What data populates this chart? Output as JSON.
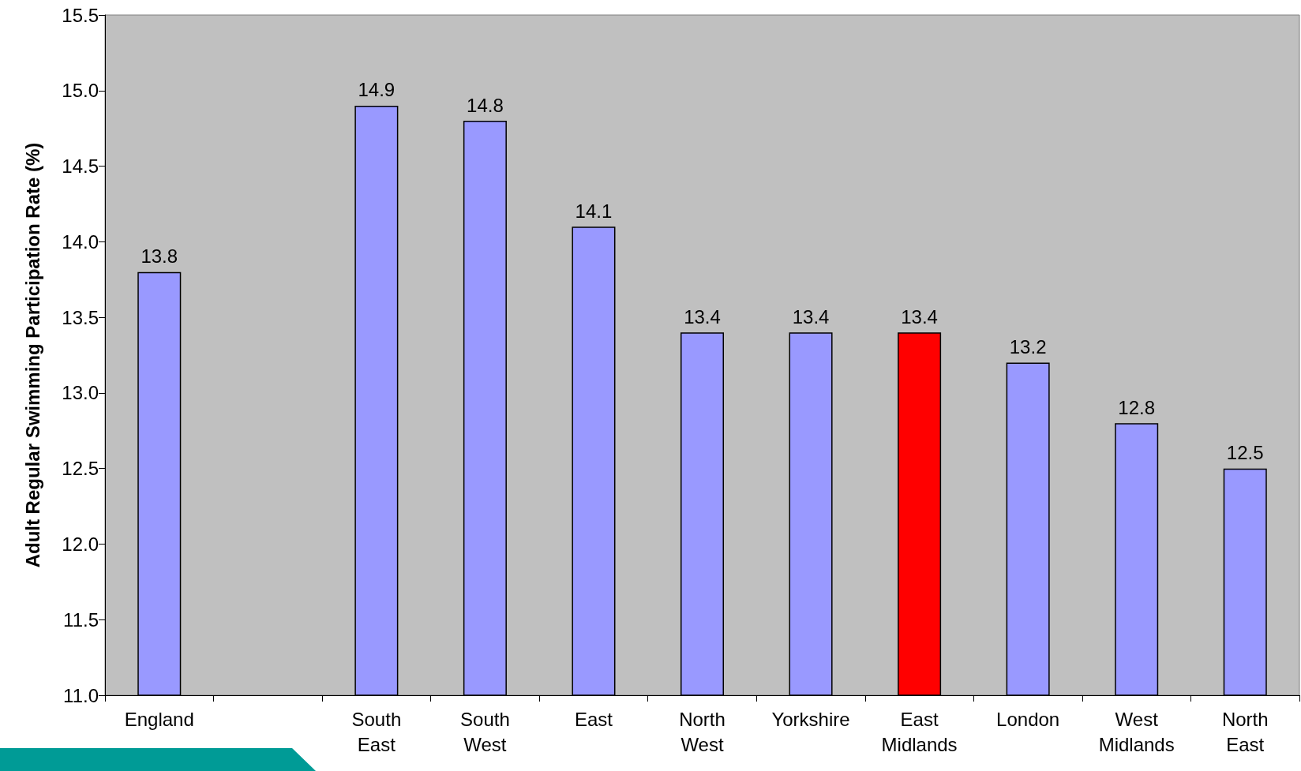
{
  "chart_data": {
    "type": "bar",
    "ylabel": "Adult Regular Swimming Participation Rate (%)",
    "categories": [
      "England",
      null,
      "South East",
      "South West",
      "East",
      "North West",
      "Yorkshire",
      "East Midlands",
      "London",
      "West Midlands",
      "North East"
    ],
    "values": [
      13.8,
      null,
      14.9,
      14.8,
      14.1,
      13.4,
      13.4,
      13.4,
      13.2,
      12.8,
      12.5
    ],
    "colors": [
      "#9999ff",
      "#9999ff",
      "#9999ff",
      "#9999ff",
      "#9999ff",
      "#9999ff",
      "#9999ff",
      "#ff0000",
      "#9999ff",
      "#9999ff",
      "#9999ff"
    ],
    "ylim": [
      11.0,
      15.5
    ],
    "yticks": [
      {
        "value": 11,
        "label": "11.0"
      },
      {
        "value": 11.5,
        "label": "11.5"
      },
      {
        "value": 12,
        "label": "12.0"
      },
      {
        "value": 12.5,
        "label": "12.5"
      },
      {
        "value": 13,
        "label": "13.0"
      },
      {
        "value": 13.5,
        "label": "13.5"
      },
      {
        "value": 14,
        "label": "14.0"
      },
      {
        "value": 14.5,
        "label": "14.5"
      },
      {
        "value": 15,
        "label": "15.0"
      },
      {
        "value": 15.5,
        "label": "15.5"
      }
    ],
    "data_labels": true,
    "grid": false
  }
}
